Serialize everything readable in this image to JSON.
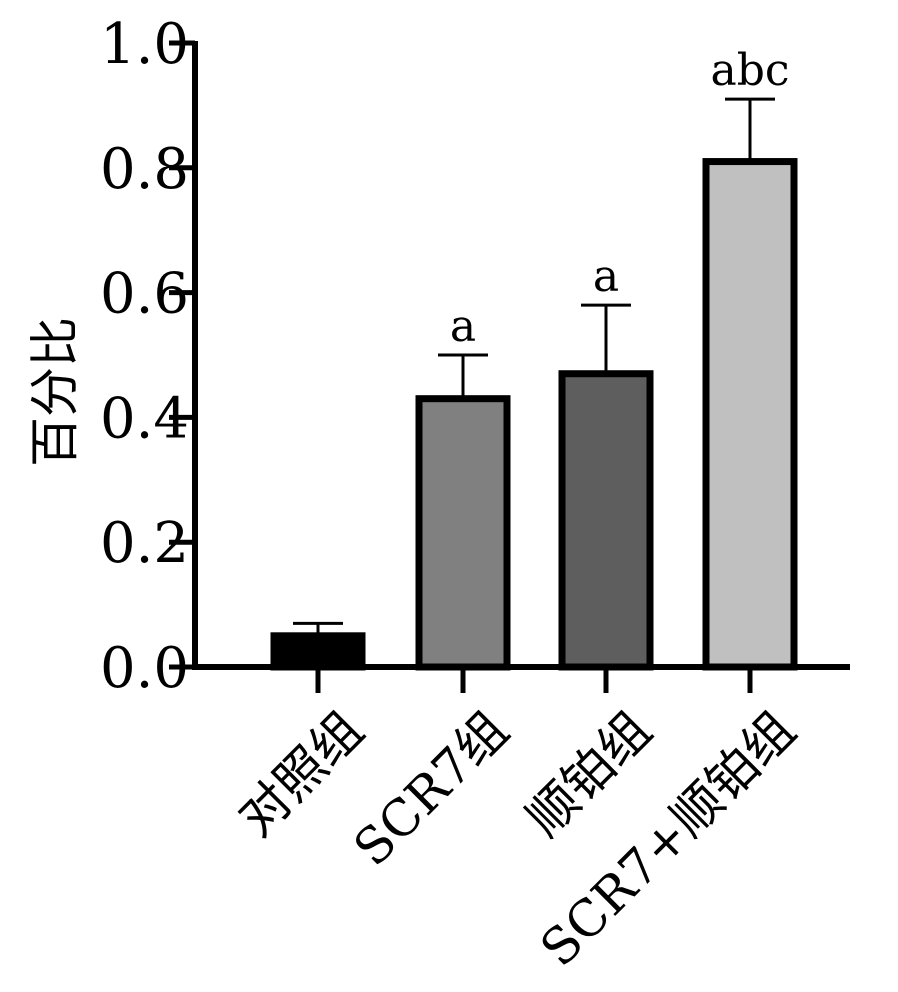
{
  "chart_data": {
    "type": "bar",
    "title": "",
    "xlabel": "",
    "ylabel": "百分比",
    "ylim": [
      0,
      1.0
    ],
    "yticks": [
      "0.0",
      "0.2",
      "0.4",
      "0.6",
      "0.8",
      "1.0"
    ],
    "grid": false,
    "categories": [
      "对照组",
      "SCR7组",
      "顺铂组",
      "SCR7+顺铂组"
    ],
    "values": [
      0.05,
      0.43,
      0.47,
      0.81
    ],
    "errors": [
      0.02,
      0.07,
      0.11,
      0.1
    ],
    "significance": [
      "",
      "a",
      "a",
      "abc"
    ],
    "colors": [
      "#000000",
      "#808080",
      "#5e5e5e",
      "#c0c0c0"
    ]
  }
}
